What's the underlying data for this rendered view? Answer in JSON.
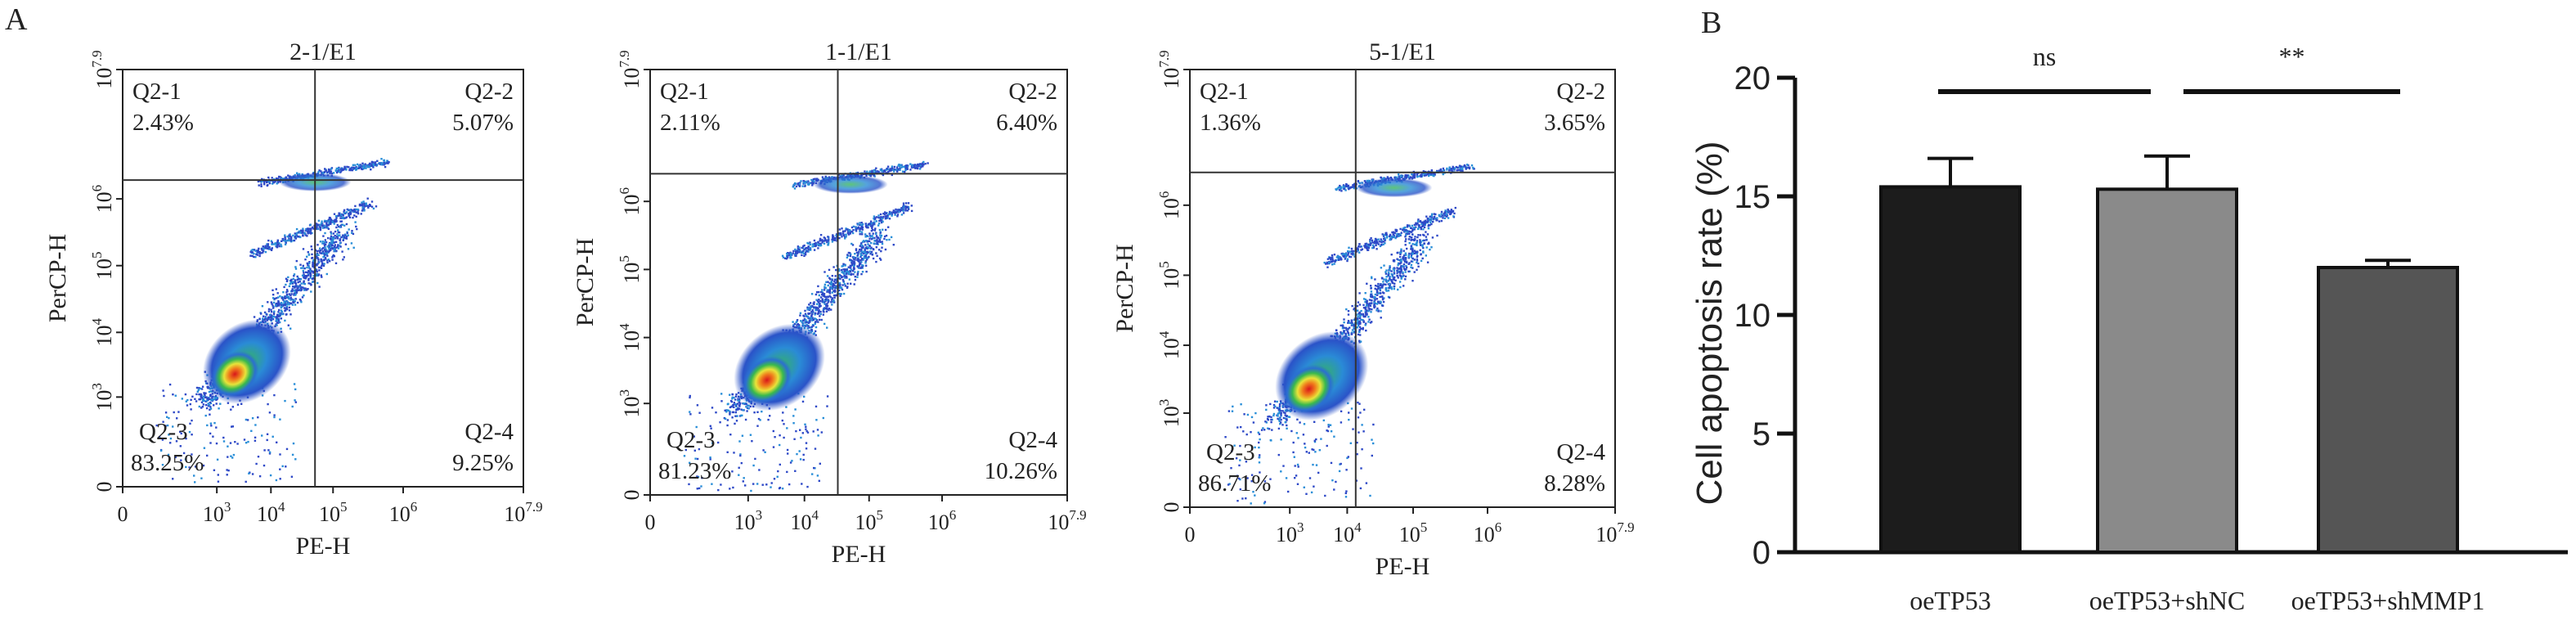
{
  "panel_labels": {
    "a": "A",
    "b": "B"
  },
  "flow": [
    {
      "title": "2-1/E1",
      "xlabel": "PE-H",
      "ylabel": "PerCP-H",
      "quadrants": [
        {
          "name": "Q2-1",
          "value": "2.43%"
        },
        {
          "name": "Q2-2",
          "value": "5.07%"
        },
        {
          "name": "Q2-3",
          "value": "83.25%"
        },
        {
          "name": "Q2-4",
          "value": "9.25%"
        }
      ]
    },
    {
      "title": "1-1/E1",
      "xlabel": "PE-H",
      "ylabel": "PerCP-H",
      "quadrants": [
        {
          "name": "Q2-1",
          "value": "2.11%"
        },
        {
          "name": "Q2-2",
          "value": "6.40%"
        },
        {
          "name": "Q2-3",
          "value": "81.23%"
        },
        {
          "name": "Q2-4",
          "value": "10.26%"
        }
      ]
    },
    {
      "title": "5-1/E1",
      "xlabel": "PE-H",
      "ylabel": "PerCP-H",
      "quadrants": [
        {
          "name": "Q2-1",
          "value": "1.36%"
        },
        {
          "name": "Q2-2",
          "value": "3.65%"
        },
        {
          "name": "Q2-3",
          "value": "86.71%"
        },
        {
          "name": "Q2-4",
          "value": "8.28%"
        }
      ]
    }
  ],
  "flow_ticks": {
    "x": [
      {
        "base": "0",
        "exp": ""
      },
      {
        "base": "10",
        "exp": "3"
      },
      {
        "base": "10",
        "exp": "4"
      },
      {
        "base": "10",
        "exp": "5"
      },
      {
        "base": "10",
        "exp": "6"
      },
      {
        "base": "10",
        "exp": "7.9"
      }
    ],
    "y": [
      {
        "base": "0",
        "exp": ""
      },
      {
        "base": "10",
        "exp": "3"
      },
      {
        "base": "10",
        "exp": "4"
      },
      {
        "base": "10",
        "exp": "5"
      },
      {
        "base": "10",
        "exp": "6"
      },
      {
        "base": "10",
        "exp": "7.9"
      }
    ]
  },
  "chart_data": {
    "type": "bar",
    "categories": [
      "oeTP53",
      "oeTP53+shNC",
      "oeTP53+shMMP1"
    ],
    "values": [
      15.4,
      15.3,
      12.0
    ],
    "errors": [
      1.2,
      1.4,
      0.3
    ],
    "ylabel": "Cell apoptosis rate (%)",
    "ylim": [
      0,
      20
    ],
    "yticks": [
      "0",
      "5",
      "10",
      "15",
      "20"
    ],
    "colors": [
      "#1c1c1c",
      "#8a8a8a",
      "#555555"
    ],
    "significance": [
      {
        "from": 0,
        "to": 1,
        "label": "ns"
      },
      {
        "from": 1,
        "to": 2,
        "label": "**"
      }
    ]
  }
}
